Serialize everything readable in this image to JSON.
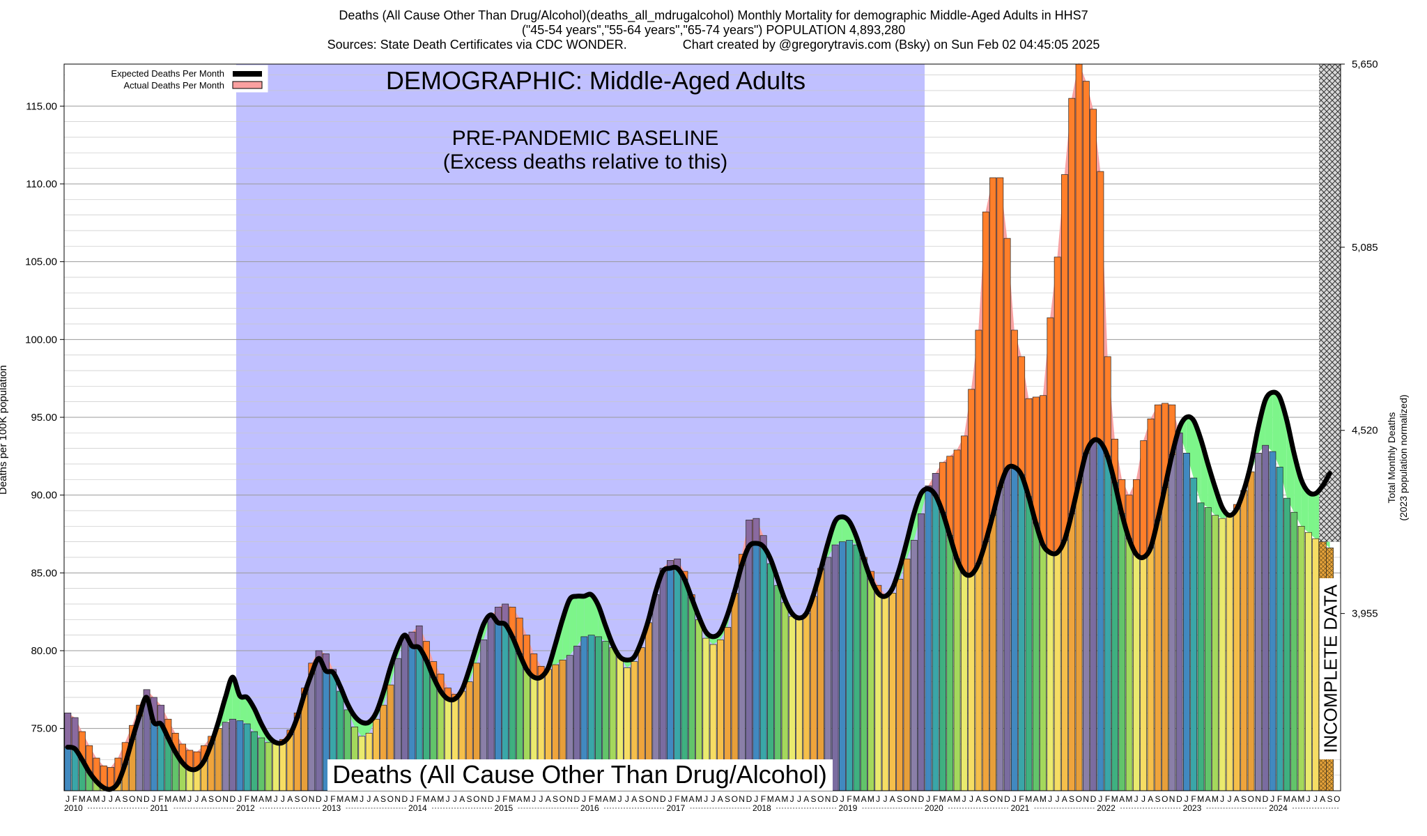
{
  "header": {
    "line1": "Deaths (All Cause Other Than Drug/Alcohol)(deaths_all_mdrugalcohol) Monthly Mortality for demographic Middle-Aged Adults in HHS7",
    "line2": "(\"45-54 years\",\"55-64 years\",\"65-74 years\") POPULATION 4,893,280",
    "line3": "Sources: State Death Certificates via CDC WONDER.                Chart created by @gregorytravis.com (Bsky) on Sun Feb 02 04:45:05 2025"
  },
  "chart_data": {
    "type": "bar",
    "ylabel": "Deaths per 100K population",
    "ylabel_right_line1": "Total Monthly Deaths",
    "ylabel_right_line2": "(2023 population normalized)",
    "ylim": [
      71.0,
      117.7
    ],
    "yticks": [
      "75.00",
      "80.00",
      "85.00",
      "90.00",
      "95.00",
      "100.00",
      "105.00",
      "110.00",
      "115.00"
    ],
    "right_ticks": [
      "3,955",
      "4,520",
      "5,085",
      "5,650"
    ],
    "legend": {
      "expected": "Expected Deaths Per Month",
      "actual": "Actual Deaths Per Month"
    },
    "demographic_label": "DEMOGRAPHIC: Middle-Aged Adults",
    "baseline_label_line1": "PRE-PANDEMIC BASELINE",
    "baseline_label_line2": "(Excess deaths relative to this)",
    "baseline_period": [
      "2012-01",
      "2019-12"
    ],
    "incomplete_label": "INCOMPLETE DATA",
    "bottom_label": "Deaths (All Cause Other Than Drug/Alcohol)",
    "month_letters": [
      "J",
      "F",
      "M",
      "A",
      "M",
      "J",
      "J",
      "A",
      "S",
      "O",
      "N",
      "D"
    ],
    "years": [
      "2010",
      "2011",
      "2012",
      "2013",
      "2014",
      "2015",
      "2016",
      "2017",
      "2018",
      "2019",
      "2020",
      "2021",
      "2022",
      "2023",
      "2024"
    ],
    "start": "2010-01",
    "incomplete_from": "2024-08",
    "actual": [
      76.0,
      75.7,
      74.8,
      73.9,
      73.1,
      72.6,
      72.5,
      73.1,
      74.1,
      75.2,
      76.5,
      77.5,
      77.0,
      76.5,
      75.6,
      74.7,
      74.0,
      73.6,
      73.5,
      73.9,
      74.5,
      75.0,
      75.4,
      75.6,
      75.5,
      75.3,
      74.8,
      74.4,
      74.1,
      74.0,
      74.3,
      74.9,
      76.0,
      77.6,
      79.2,
      80.0,
      79.8,
      78.8,
      77.4,
      76.2,
      75.1,
      74.5,
      74.7,
      75.6,
      76.5,
      77.8,
      79.5,
      80.9,
      81.2,
      81.6,
      80.6,
      79.3,
      78.5,
      77.6,
      77.2,
      77.4,
      78.0,
      79.2,
      80.7,
      82.2,
      82.8,
      83.0,
      82.8,
      82.1,
      81.0,
      79.8,
      79.0,
      78.8,
      79.1,
      79.4,
      79.7,
      80.3,
      80.9,
      81.0,
      80.9,
      80.6,
      80.2,
      79.6,
      78.9,
      79.3,
      80.2,
      81.8,
      83.6,
      85.3,
      85.8,
      85.9,
      85.1,
      83.6,
      82.0,
      80.8,
      80.4,
      80.7,
      81.5,
      83.7,
      86.2,
      88.4,
      88.5,
      87.4,
      85.6,
      84.2,
      83.1,
      82.2,
      82.0,
      82.4,
      83.5,
      85.3,
      86.0,
      86.8,
      87.0,
      87.1,
      86.8,
      86.0,
      85.1,
      84.2,
      83.6,
      83.7,
      84.6,
      85.9,
      87.1,
      88.8,
      90.6,
      91.4,
      92.1,
      92.5,
      92.9,
      93.8,
      96.8,
      100.6,
      108.2,
      110.4,
      110.4,
      106.5,
      100.6,
      98.9,
      96.2,
      96.3,
      96.4,
      101.4,
      105.3,
      110.6,
      115.5,
      117.8,
      116.6,
      114.8,
      110.8,
      98.9,
      93.6,
      91.0,
      90.0,
      91.0,
      93.5,
      94.9,
      95.8,
      95.9,
      95.8,
      94.0,
      92.7,
      91.1,
      89.5,
      89.2,
      88.7,
      88.5,
      88.6,
      89.4,
      90.3,
      91.5,
      92.7,
      93.2,
      92.8,
      91.8,
      89.8,
      88.9,
      88.0,
      87.6,
      87.2,
      87.0,
      86.6
    ],
    "expected": [
      73.8,
      73.7,
      73.0,
      72.2,
      71.6,
      71.2,
      71.1,
      71.5,
      72.7,
      74.3,
      75.8,
      77.0,
      75.4,
      75.3,
      74.4,
      73.5,
      72.8,
      72.4,
      72.4,
      72.9,
      74.0,
      75.4,
      77.0,
      78.3,
      77.1,
      77.0,
      76.3,
      75.3,
      74.5,
      74.1,
      74.1,
      74.6,
      75.7,
      77.2,
      78.5,
      79.5,
      78.7,
      78.6,
      77.7,
      76.6,
      75.8,
      75.4,
      75.4,
      76.0,
      77.3,
      78.9,
      80.2,
      81.0,
      80.3,
      80.2,
      79.4,
      78.3,
      77.4,
      76.9,
      76.9,
      77.5,
      78.8,
      80.3,
      81.7,
      82.3,
      81.8,
      81.7,
      80.9,
      79.8,
      78.8,
      78.3,
      78.3,
      78.9,
      80.4,
      82.0,
      83.3,
      83.5,
      83.5,
      83.6,
      82.9,
      81.6,
      80.4,
      79.6,
      79.4,
      79.6,
      80.6,
      82.0,
      83.8,
      85.1,
      85.3,
      85.3,
      84.6,
      83.4,
      82.2,
      81.2,
      80.9,
      81.2,
      82.3,
      83.8,
      85.5,
      86.7,
      86.9,
      86.7,
      85.9,
      84.6,
      83.3,
      82.4,
      82.1,
      82.4,
      83.6,
      85.2,
      86.9,
      88.3,
      88.6,
      88.3,
      87.3,
      85.9,
      84.6,
      83.7,
      83.5,
      84.0,
      85.3,
      87.0,
      88.8,
      90.1,
      90.4,
      90.0,
      88.9,
      87.4,
      85.9,
      85.0,
      84.9,
      85.6,
      87.0,
      88.7,
      90.5,
      91.7,
      91.8,
      91.3,
      89.9,
      88.2,
      86.8,
      86.3,
      86.3,
      87.1,
      88.8,
      90.8,
      92.7,
      93.5,
      93.4,
      92.5,
      90.8,
      88.8,
      87.2,
      86.2,
      86.0,
      86.6,
      88.4,
      90.5,
      92.6,
      94.3,
      95.0,
      94.8,
      93.6,
      92.0,
      90.5,
      89.2,
      88.7,
      89.1,
      90.3,
      92.0,
      94.3,
      96.1,
      96.6,
      96.3,
      94.8,
      92.7,
      91.0,
      90.2,
      90.1,
      90.6,
      91.4
    ],
    "colors": {
      "baseline": "#c0c0ff",
      "excess": "#ff7f2a",
      "excess_border": "#f9a3a3",
      "deficit": "#7df58a",
      "expected_line": "#000000",
      "legend_actual": "#f9a0a0",
      "bar_palette": [
        "#4189c0",
        "#3aa6a8",
        "#3fb080",
        "#62c46a",
        "#a4d85c",
        "#eaea6e",
        "#f6dd64",
        "#f5bf4b",
        "#efa43c",
        "#e79f3a",
        "#8a7fa8",
        "#7a6ca0"
      ]
    }
  }
}
